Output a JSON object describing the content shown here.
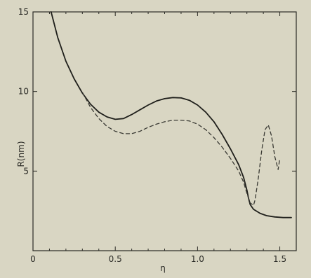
{
  "chart_data": {
    "type": "line",
    "title": "",
    "xlabel": "η",
    "ylabel": "R(nm)",
    "xlim": [
      0,
      1.6
    ],
    "ylim": [
      0,
      15
    ],
    "grid": false,
    "x_ticks": [
      0,
      0.5,
      1.0,
      1.5
    ],
    "x_tick_labels": [
      "0",
      "0.5",
      "1.0",
      "1.5"
    ],
    "y_ticks": [
      5,
      10,
      15
    ],
    "y_tick_labels": [
      "5",
      "10",
      "15"
    ],
    "series": [
      {
        "style": "solid",
        "color": "#1f1f1b",
        "x": [
          0.11,
          0.15,
          0.2,
          0.25,
          0.3,
          0.35,
          0.4,
          0.45,
          0.5,
          0.55,
          0.6,
          0.65,
          0.7,
          0.75,
          0.8,
          0.85,
          0.9,
          0.95,
          1.0,
          1.05,
          1.1,
          1.15,
          1.2,
          1.25,
          1.28,
          1.3,
          1.31,
          1.32,
          1.34,
          1.38,
          1.42,
          1.47,
          1.52,
          1.57
        ],
        "y": [
          15.0,
          13.4,
          11.9,
          10.8,
          9.9,
          9.2,
          8.7,
          8.4,
          8.25,
          8.3,
          8.55,
          8.85,
          9.15,
          9.4,
          9.55,
          9.62,
          9.6,
          9.45,
          9.15,
          8.7,
          8.1,
          7.3,
          6.4,
          5.4,
          4.6,
          3.8,
          3.3,
          2.9,
          2.6,
          2.35,
          2.2,
          2.12,
          2.08,
          2.08
        ]
      },
      {
        "style": "dashed",
        "color": "#3a3a34",
        "x": [
          0.3,
          0.35,
          0.4,
          0.45,
          0.5,
          0.55,
          0.6,
          0.65,
          0.7,
          0.75,
          0.8,
          0.85,
          0.9,
          0.95,
          1.0,
          1.05,
          1.1,
          1.15,
          1.2,
          1.25,
          1.28,
          1.3,
          1.32,
          1.34,
          1.35,
          1.37,
          1.39,
          1.41,
          1.43,
          1.45,
          1.47,
          1.49,
          1.5
        ],
        "y": [
          9.95,
          9.0,
          8.3,
          7.8,
          7.5,
          7.35,
          7.35,
          7.5,
          7.75,
          7.95,
          8.1,
          8.2,
          8.2,
          8.15,
          7.95,
          7.6,
          7.1,
          6.5,
          5.8,
          5.0,
          4.3,
          3.6,
          3.0,
          2.85,
          3.2,
          4.6,
          6.3,
          7.6,
          7.9,
          7.2,
          5.9,
          5.1,
          5.8
        ]
      }
    ]
  }
}
